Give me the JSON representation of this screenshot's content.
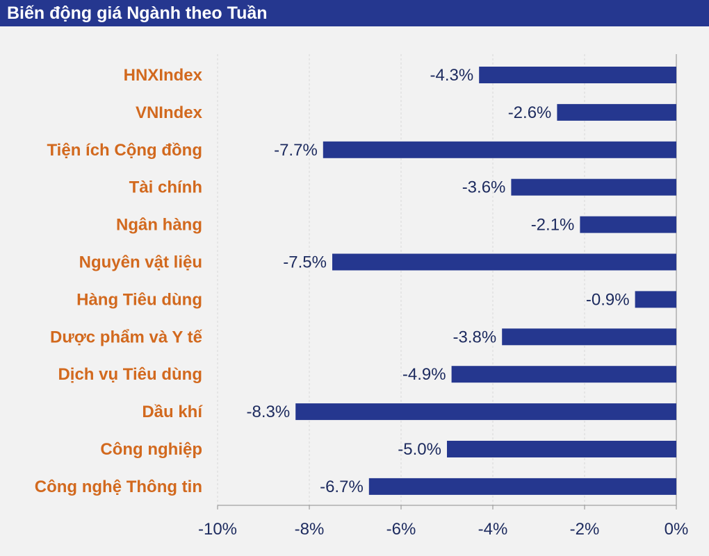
{
  "chart_data": {
    "type": "bar",
    "orientation": "horizontal",
    "title": "Biến động giá Ngành theo Tuần",
    "categories": [
      "HNXIndex",
      "VNIndex",
      "Tiện ích Cộng đồng",
      "Tài chính",
      "Ngân hàng",
      "Nguyên vật liệu",
      "Hàng Tiêu dùng",
      "Dược phẩm và Y tế",
      "Dịch vụ Tiêu dùng",
      "Dầu khí",
      "Công nghiệp",
      "Công nghệ Thông tin"
    ],
    "values": [
      -4.3,
      -2.6,
      -7.7,
      -3.6,
      -2.1,
      -7.5,
      -0.9,
      -3.8,
      -4.9,
      -8.3,
      -5.0,
      -6.7
    ],
    "value_labels": [
      "-4.3%",
      "-2.6%",
      "-7.7%",
      "-3.6%",
      "-2.1%",
      "-7.5%",
      "-0.9%",
      "-3.8%",
      "-4.9%",
      "-8.3%",
      "-5.0%",
      "-6.7%"
    ],
    "xlim": [
      -10,
      0
    ],
    "x_ticks": [
      -10,
      -8,
      -6,
      -4,
      -2,
      0
    ],
    "x_tick_labels": [
      "-10%",
      "-8%",
      "-6%",
      "-4%",
      "-2%",
      "0%"
    ],
    "grid": true,
    "legend": "none",
    "colors": {
      "header_bg": "#25378f",
      "bar": "#25378f",
      "category_text": "#d2691e",
      "value_text": "#1c2a5e",
      "tick_text": "#1c2a5e",
      "background": "#f2f2f2"
    }
  }
}
